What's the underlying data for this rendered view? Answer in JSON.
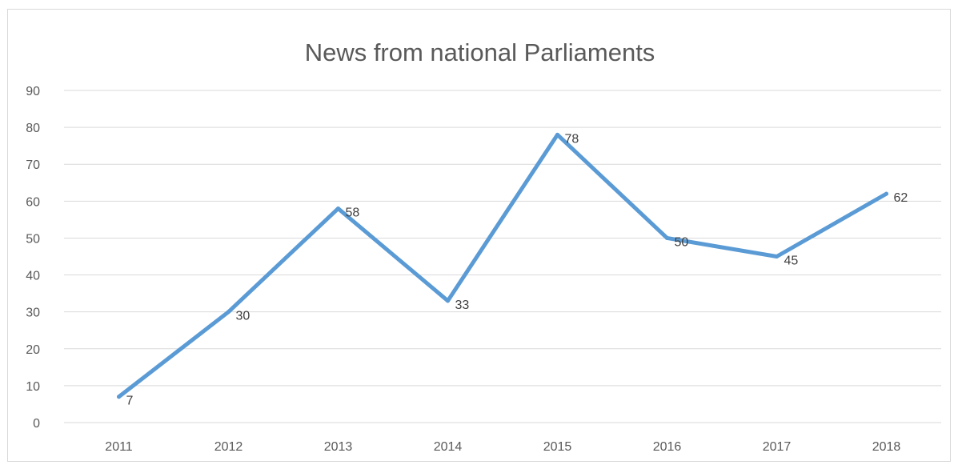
{
  "chart_data": {
    "type": "line",
    "title": "News from national Parliaments",
    "categories": [
      "2011",
      "2012",
      "2013",
      "2014",
      "2015",
      "2016",
      "2017",
      "2018"
    ],
    "values": [
      7,
      30,
      58,
      33,
      78,
      50,
      45,
      62
    ],
    "data_labels": [
      "7",
      "30",
      "58",
      "33",
      "78",
      "50",
      "45",
      "62"
    ],
    "xlabel": "",
    "ylabel": "",
    "ylim": [
      0,
      90
    ],
    "yticks": [
      0,
      10,
      20,
      30,
      40,
      50,
      60,
      70,
      80,
      90
    ],
    "grid": true,
    "legend": false,
    "colors": {
      "line": "#5b9bd5",
      "grid": "#d9d9d9",
      "text": "#595959",
      "title": "#595959"
    }
  }
}
